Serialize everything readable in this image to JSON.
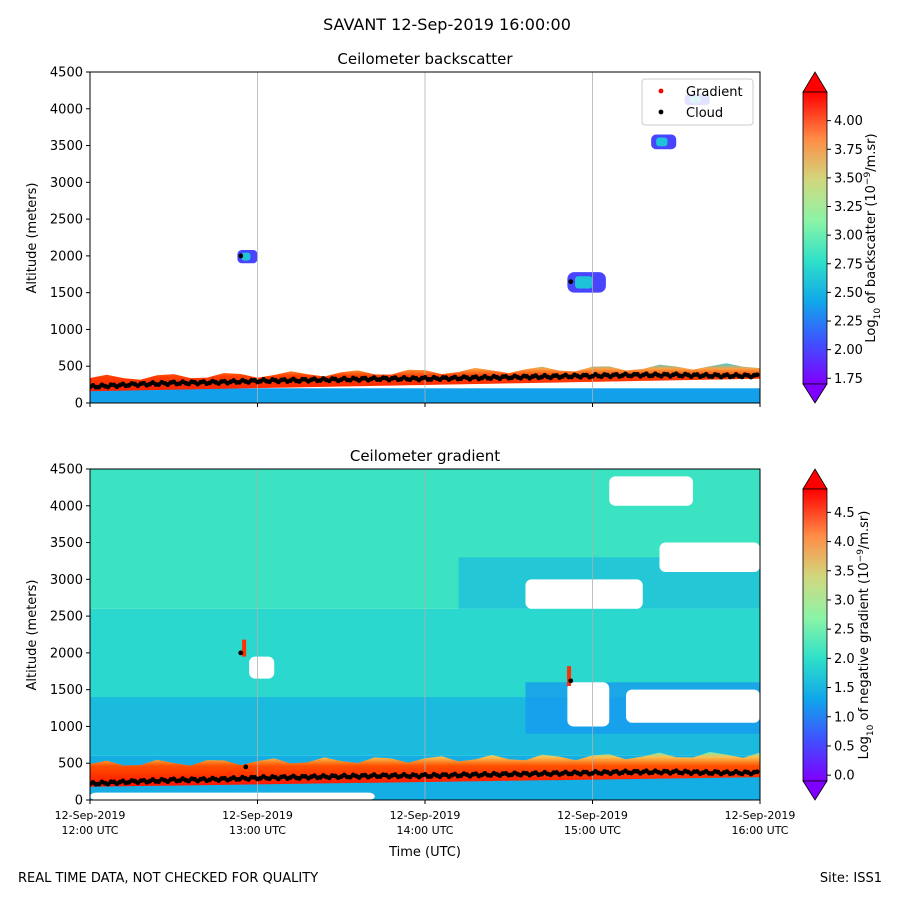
{
  "figure": {
    "suptitle": "SAVANT 12-Sep-2019 16:00:00",
    "footer_left": "REAL TIME DATA, NOT CHECKED FOR QUALITY",
    "footer_right": "Site: ISS1"
  },
  "chart_data": [
    {
      "type": "heatmap",
      "title": "Ceilometer backscatter",
      "ylabel": "Altitude (meters)",
      "xlabel": "",
      "xlim_hours": [
        12,
        16
      ],
      "ylim": [
        0,
        4500
      ],
      "yticks": [
        0,
        500,
        1000,
        1500,
        2000,
        2500,
        3000,
        3500,
        4000,
        4500
      ],
      "xtick_hours": [
        12,
        13,
        14,
        15,
        16
      ],
      "grid_x": true,
      "legend": {
        "placement": "top-right",
        "entries": [
          {
            "label": "Gradient",
            "color": "#ff0000"
          },
          {
            "label": "Cloud",
            "color": "#000000"
          }
        ]
      },
      "colorbar": {
        "label_pre": "Log",
        "label_sub": "10",
        "label_mid": " of backscatter (10",
        "label_sup": "−9",
        "label_post": "/m.sr)",
        "vmin": 1.7,
        "vmax": 4.25,
        "ticks": [
          1.75,
          2.0,
          2.25,
          2.5,
          2.75,
          3.0,
          3.25,
          3.5,
          3.75,
          4.0
        ],
        "tick_labels": [
          "1.75",
          "2.00",
          "2.25",
          "2.50",
          "2.75",
          "3.00",
          "3.25",
          "3.50",
          "3.75",
          "4.00"
        ],
        "extend": "both"
      },
      "features": [
        {
          "kind": "boundary_layer",
          "t_start": 12.0,
          "t_end": 16.0,
          "alt_base": 0,
          "alt_top_start": 280,
          "alt_top_end": 450
        },
        {
          "kind": "cloud_patch",
          "t_start": 12.88,
          "t_end": 13.0,
          "alt_bottom": 1900,
          "alt_top": 2080
        },
        {
          "kind": "cloud_patch",
          "t_start": 14.85,
          "t_end": 15.08,
          "alt_bottom": 1500,
          "alt_top": 1780
        },
        {
          "kind": "cloud_patch",
          "t_start": 15.35,
          "t_end": 15.5,
          "alt_bottom": 3450,
          "alt_top": 3650
        },
        {
          "kind": "cloud_patch",
          "t_start": 15.55,
          "t_end": 15.7,
          "alt_bottom": 4050,
          "alt_top": 4200
        }
      ],
      "cloud_base_series": {
        "x_hours": [
          12.0,
          12.25,
          12.5,
          12.75,
          13.0,
          13.25,
          13.5,
          13.75,
          14.0,
          14.25,
          14.5,
          14.75,
          15.0,
          15.25,
          15.5,
          15.75,
          16.0
        ],
        "altitude_m": [
          220,
          250,
          270,
          280,
          300,
          310,
          320,
          330,
          330,
          340,
          350,
          360,
          370,
          380,
          380,
          370,
          370
        ]
      },
      "isolated_cloud_detections": [
        {
          "t_hour": 12.9,
          "altitude_m": 2000
        },
        {
          "t_hour": 14.87,
          "altitude_m": 1650
        }
      ]
    },
    {
      "type": "heatmap",
      "title": "Ceilometer gradient",
      "ylabel": "Altitude (meters)",
      "xlabel": "Time (UTC)",
      "xlim_hours": [
        12,
        16
      ],
      "ylim": [
        0,
        4500
      ],
      "yticks": [
        0,
        500,
        1000,
        1500,
        2000,
        2500,
        3000,
        3500,
        4000,
        4500
      ],
      "xtick_hours": [
        12,
        13,
        14,
        15,
        16
      ],
      "xtick_labels": [
        {
          "line1": "12-Sep-2019",
          "line2": "12:00 UTC"
        },
        {
          "line1": "12-Sep-2019",
          "line2": "13:00 UTC"
        },
        {
          "line1": "12-Sep-2019",
          "line2": "14:00 UTC"
        },
        {
          "line1": "12-Sep-2019",
          "line2": "15:00 UTC"
        },
        {
          "line1": "12-Sep-2019",
          "line2": "16:00 UTC"
        }
      ],
      "grid_x": true,
      "colorbar": {
        "label_pre": "Log",
        "label_sub": "10",
        "label_mid": " of negative gradient (10",
        "label_sup": "−9",
        "label_post": "/m.sr)",
        "vmin": -0.1,
        "vmax": 4.9,
        "ticks": [
          0.0,
          0.5,
          1.0,
          1.5,
          2.0,
          2.5,
          3.0,
          3.5,
          4.0,
          4.5
        ],
        "tick_labels": [
          "0.0",
          "0.5",
          "1.0",
          "1.5",
          "2.0",
          "2.5",
          "3.0",
          "3.5",
          "4.0",
          "4.5"
        ],
        "extend": "both"
      },
      "background_value": 2.0,
      "gap_regions": [
        {
          "t_start": 12.95,
          "t_end": 13.1,
          "alt_bottom": 1650,
          "alt_top": 1950
        },
        {
          "t_start": 14.85,
          "t_end": 15.1,
          "alt_bottom": 1000,
          "alt_top": 1600
        },
        {
          "t_start": 15.2,
          "t_end": 16.0,
          "alt_bottom": 1050,
          "alt_top": 1500
        },
        {
          "t_start": 14.6,
          "t_end": 15.3,
          "alt_bottom": 2600,
          "alt_top": 3000
        },
        {
          "t_start": 15.4,
          "t_end": 16.0,
          "alt_bottom": 3100,
          "alt_top": 3500
        },
        {
          "t_start": 15.1,
          "t_end": 15.6,
          "alt_bottom": 4000,
          "alt_top": 4400
        },
        {
          "t_start": 12.0,
          "t_end": 13.7,
          "alt_bottom": 0,
          "alt_top": 100
        }
      ],
      "cloud_base_series": {
        "x_hours": [
          12.0,
          12.25,
          12.5,
          12.75,
          13.0,
          13.25,
          13.5,
          13.75,
          14.0,
          14.25,
          14.5,
          14.75,
          15.0,
          15.25,
          15.5,
          15.75,
          16.0
        ],
        "altitude_m": [
          220,
          250,
          270,
          280,
          300,
          310,
          320,
          330,
          330,
          340,
          350,
          360,
          370,
          380,
          380,
          370,
          370
        ]
      },
      "isolated_cloud_detections": [
        {
          "t_hour": 12.9,
          "altitude_m": 2000
        },
        {
          "t_hour": 14.87,
          "altitude_m": 1620
        },
        {
          "t_hour": 12.93,
          "altitude_m": 450
        }
      ]
    }
  ]
}
